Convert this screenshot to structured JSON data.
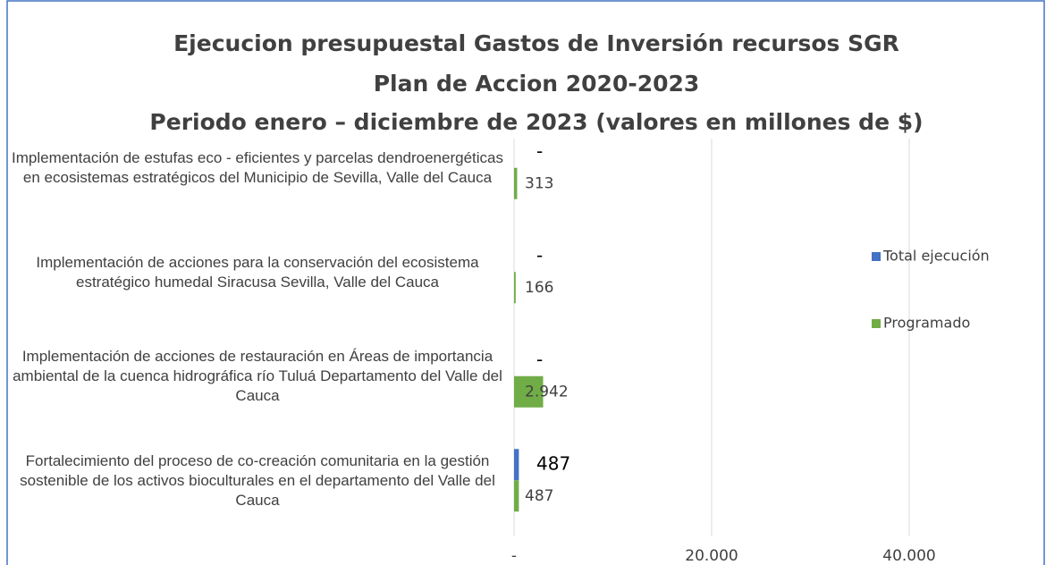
{
  "chart_data": {
    "type": "hbar",
    "title": "Ejecucion presupuestal Gastos de Inversión recursos SGR",
    "subtitle": [
      "Plan de Accion 2020-2023",
      "Periodo enero – diciembre de 2023 (valores en millones de $)"
    ],
    "categories": [
      "Implementación de estufas eco - eficientes y parcelas dendroenergéticas en ecosistemas estratégicos del Municipio de Sevilla, Valle del Cauca",
      "Implementación de acciones para la conservación del ecosistema estratégico humedal Siracusa Sevilla, Valle del Cauca",
      "Implementación de acciones de restauración en Áreas de importancia ambiental de la cuenca hidrográfica río Tuluá Departamento del Valle del Cauca",
      "Fortalecimiento del proceso de co-creación comunitaria en la gestión sostenible de los activos bioculturales en el departamento del Valle del Cauca"
    ],
    "series": [
      {
        "name": "Total ejecución",
        "color": "#4472c4",
        "values": [
          0,
          0,
          0,
          487
        ],
        "value_labels": [
          "-",
          "-",
          "-",
          "487"
        ]
      },
      {
        "name": "Programado",
        "color": "#70ad47",
        "values": [
          313,
          166,
          2942,
          487
        ],
        "value_labels": [
          "313",
          "166",
          "2.942",
          "487"
        ]
      }
    ],
    "xlim": [
      0,
      40000
    ],
    "xticks": [
      {
        "value": 0,
        "label": "-"
      },
      {
        "value": 20000,
        "label": "20.000"
      },
      {
        "value": 40000,
        "label": "40.000"
      }
    ],
    "grid": true,
    "legend": "right"
  }
}
